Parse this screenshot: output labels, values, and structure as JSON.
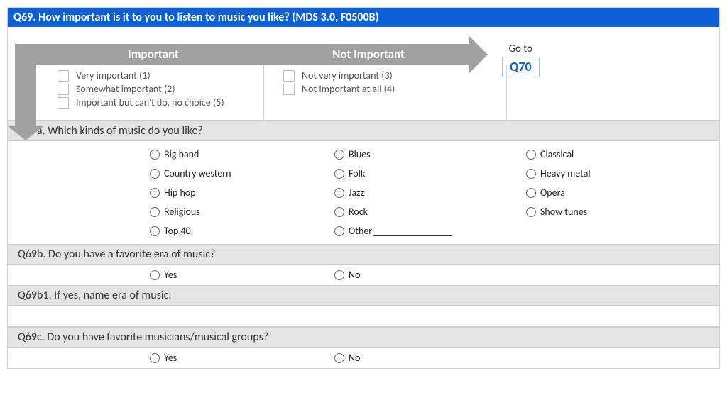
{
  "header": "Q69. How important is it to you to listen to music you like? (MDS 3.0, F0500B)",
  "branch": {
    "important": {
      "label": "Important",
      "options": [
        "Very important (1)",
        "Somewhat important (2)",
        "Important but can't do, no choice (5)"
      ]
    },
    "not_important": {
      "label": "Not Important",
      "options": [
        "Not very important (3)",
        "Not Important at all (4)"
      ]
    },
    "goto_label": "Go to",
    "goto_target": "Q70"
  },
  "q69a": {
    "title": "Q69a. Which kinds of music do you like?",
    "options": [
      "Big band",
      "Blues",
      "Classical",
      "Country western",
      "Folk",
      "Heavy metal",
      "Hip hop",
      "Jazz",
      "Opera",
      "Religious",
      "Rock",
      "Show tunes",
      "Top 40"
    ],
    "other_label": "Other"
  },
  "q69b": {
    "title": "Q69b. Do you have a favorite era of music?",
    "yes": "Yes",
    "no": "No"
  },
  "q69b1": {
    "title": "Q69b1. If yes, name era of music:"
  },
  "q69c": {
    "title": "Q69c. Do you have favorite musicians/musical groups?",
    "yes": "Yes",
    "no": "No"
  }
}
